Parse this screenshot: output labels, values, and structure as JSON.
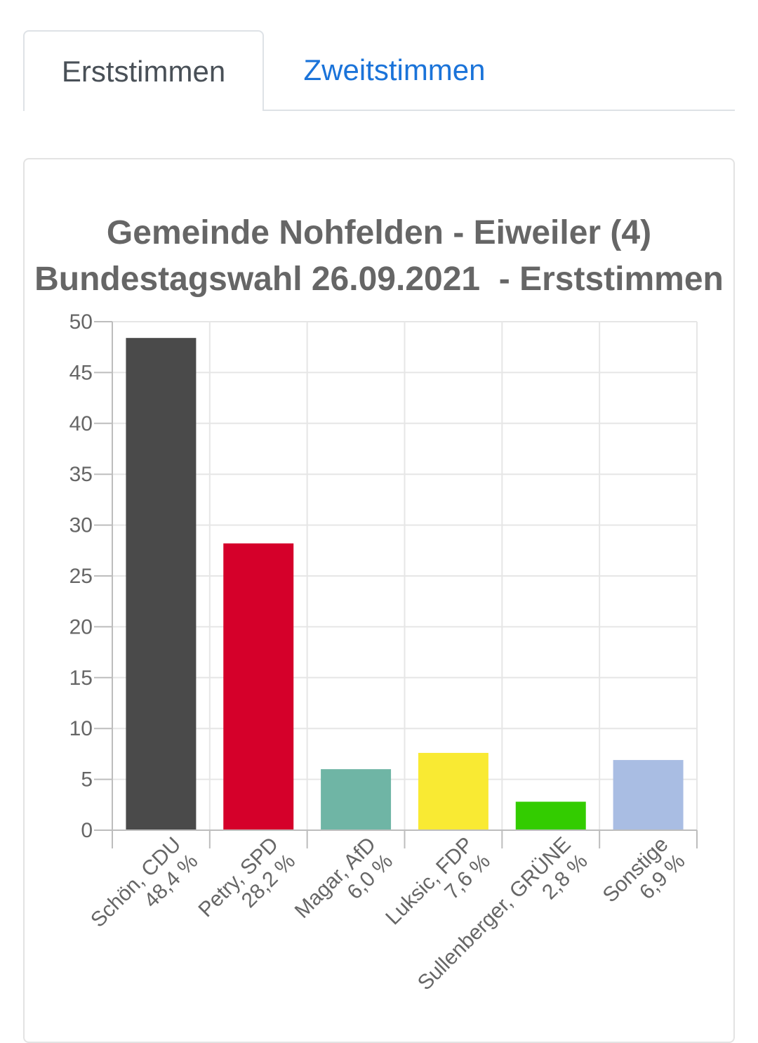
{
  "tabs": [
    {
      "label": "Erststimmen",
      "active": true
    },
    {
      "label": "Zweitstimmen",
      "active": false
    }
  ],
  "chart_data": {
    "type": "bar",
    "title": "Gemeinde Nohfelden - Eiweiler (4)",
    "subtitle": "Bundestagswahl 26.09.2021  - Erststimmen",
    "categories": [
      "Schön, CDU",
      "Petry, SPD",
      "Magar, AfD",
      "Luksic, FDP",
      "Sullenberger, GRÜNE",
      "Sonstige"
    ],
    "value_labels": [
      "48,4 %",
      "28,2 %",
      "6,0 %",
      "7,6 %",
      "2,8 %",
      "6,9 %"
    ],
    "values": [
      48.4,
      28.2,
      6.0,
      7.6,
      2.8,
      6.9
    ],
    "colors": [
      "#4a4a4a",
      "#d5002a",
      "#6fb5a5",
      "#f9ea33",
      "#33cc00",
      "#a9bde3"
    ],
    "yticks": [
      "0",
      "5",
      "10",
      "15",
      "20",
      "25",
      "30",
      "35",
      "40",
      "45",
      "50"
    ],
    "ylim": [
      0,
      50
    ],
    "grid": true
  }
}
